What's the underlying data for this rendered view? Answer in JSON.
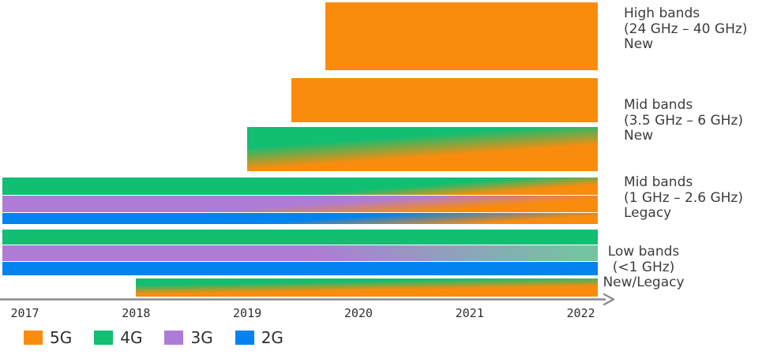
{
  "colors": {
    "5G": "#FA8C0D",
    "4G": "#12BE72",
    "3G": "#AE7CD6",
    "2G": "#0283EF",
    "3G_fading_to_4G": "#74C3A3",
    "axis": "#8A8A8A",
    "text": "#3D3D3D"
  },
  "x_axis": {
    "years": [
      "2017",
      "2018",
      "2019",
      "2020",
      "2021",
      "2022"
    ]
  },
  "legend": [
    {
      "label": "5G",
      "color_key": "5G"
    },
    {
      "label": "4G",
      "color_key": "4G"
    },
    {
      "label": "3G",
      "color_key": "3G"
    },
    {
      "label": "2G",
      "color_key": "2G"
    }
  ],
  "group_labels": [
    {
      "id": "high-bands-new",
      "lines": [
        "High bands",
        "(24 GHz – 40 GHz)",
        "New"
      ]
    },
    {
      "id": "mid-bands-new",
      "lines": [
        "Mid bands",
        "(3.5 GHz – 6 GHz)",
        "New"
      ]
    },
    {
      "id": "mid-bands-legacy",
      "lines": [
        "Mid bands",
        "(1 GHz – 2.6 GHz)",
        "Legacy"
      ]
    },
    {
      "id": "low-bands",
      "lines": [
        "Low bands",
        "(<1 GHz)",
        "New/Legacy"
      ]
    }
  ],
  "chart_data": {
    "type": "timeline-bands (gantt-style spectrum chart)",
    "x_range": [
      2016.8,
      2022.15
    ],
    "x_tick_years": [
      2017,
      2018,
      2019,
      2020,
      2021,
      2022
    ],
    "legend_position": "bottom-left",
    "grid": false,
    "bands": [
      {
        "id": "high-new-5g",
        "group": "High bands (24 GHz – 40 GHz) New",
        "tech": "5G",
        "start": 2019.7,
        "end": 2022.15,
        "fill": {
          "type": "solid",
          "color": "5G"
        }
      },
      {
        "id": "mid-new-5g",
        "group": "Mid bands (3.5 GHz – 6 GHz) New",
        "tech": "5G",
        "start": 2019.4,
        "end": 2022.15,
        "fill": {
          "type": "gradient",
          "from": "4G",
          "to": "5G",
          "angle": 176,
          "stops": [
            -40,
            -20
          ],
          "note": "renders solid 5G orange"
        }
      },
      {
        "id": "mid-new-4g-5g",
        "group": "Mid bands (3.5 GHz – 6 GHz) New",
        "tech": "4G → 5G",
        "start": 2019.0,
        "end": 2022.15,
        "fill": {
          "type": "gradient",
          "from": "4G",
          "to": "5G",
          "angle": 176,
          "stops": [
            30,
            62
          ]
        }
      },
      {
        "id": "mid-legacy-4g",
        "group": "Mid bands (1 GHz – 2.6 GHz) Legacy",
        "tech": "4G → 5G",
        "start": 2016.8,
        "end": 2022.15,
        "fill": {
          "type": "gradient",
          "from": "4G",
          "to": "5G",
          "angle": 175.5,
          "stops": [
            64,
            84
          ]
        }
      },
      {
        "id": "mid-legacy-3g",
        "group": "Mid bands (1 GHz – 2.6 GHz) Legacy",
        "tech": "3G → 5G",
        "start": 2016.8,
        "end": 2022.15,
        "fill": {
          "type": "gradient",
          "from": "3G",
          "to": "5G",
          "angle": 176,
          "stops": [
            52,
            78
          ]
        }
      },
      {
        "id": "mid-legacy-2g",
        "group": "Mid bands (1 GHz – 2.6 GHz) Legacy",
        "tech": "2G → 5G",
        "start": 2016.8,
        "end": 2022.15,
        "fill": {
          "type": "gradient",
          "from": "2G",
          "to": "5G",
          "angle": 176,
          "stops": [
            54,
            84
          ]
        }
      },
      {
        "id": "low-4g",
        "group": "Low bands (<1 GHz) New/Legacy",
        "tech": "4G",
        "start": 2016.8,
        "end": 2022.15,
        "fill": {
          "type": "solid",
          "color": "4G"
        }
      },
      {
        "id": "low-3g",
        "group": "Low bands (<1 GHz) New/Legacy",
        "tech": "3G → 4G",
        "start": 2016.8,
        "end": 2022.15,
        "fill": {
          "type": "gradient",
          "from": "3G",
          "to": "3G_fading_to_4G",
          "angle": 90,
          "stops": [
            52,
            97
          ]
        }
      },
      {
        "id": "low-2g",
        "group": "Low bands (<1 GHz) New/Legacy",
        "tech": "2G",
        "start": 2016.8,
        "end": 2022.15,
        "fill": {
          "type": "solid",
          "color": "2G"
        }
      },
      {
        "id": "low-new-4g-5g",
        "group": "Low bands (<1 GHz) New/Legacy",
        "tech": "4G → 5G",
        "start": 2018.0,
        "end": 2022.15,
        "fill": {
          "type": "gradient",
          "from": "4G",
          "to": "5G",
          "angle": 179,
          "stops": [
            25,
            60
          ]
        }
      }
    ]
  }
}
